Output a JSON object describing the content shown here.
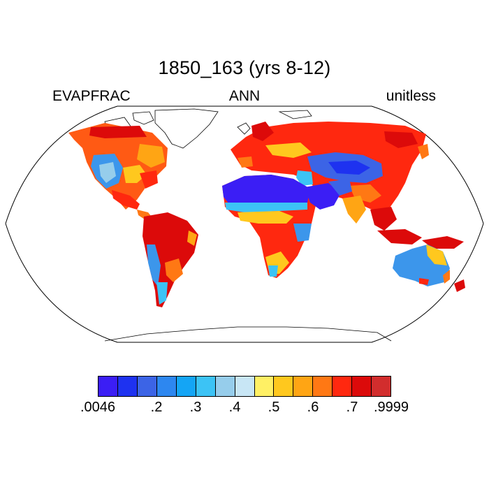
{
  "header": {
    "title": "1850_163 (yrs 8-12)",
    "left_label": "EVAPFRAC",
    "center_label": "ANN",
    "right_label": "unitless"
  },
  "map": {
    "variable": "EVAPFRAC",
    "season": "ANN",
    "projection": "robinson",
    "land_only": true
  },
  "colorbar": {
    "colors": [
      "#3b1ef5",
      "#1e32f0",
      "#3c64e6",
      "#2d87f0",
      "#14a5f5",
      "#3cc3f5",
      "#96cdeb",
      "#c8e6f5",
      "#fff064",
      "#ffc81e",
      "#ffa514",
      "#ff7814",
      "#ff280f",
      "#dc0a0a",
      "#d22d2d"
    ],
    "labels": [
      ".0046",
      ".2",
      ".3",
      ".4",
      ".5",
      ".6",
      ".7",
      ".9999"
    ]
  }
}
